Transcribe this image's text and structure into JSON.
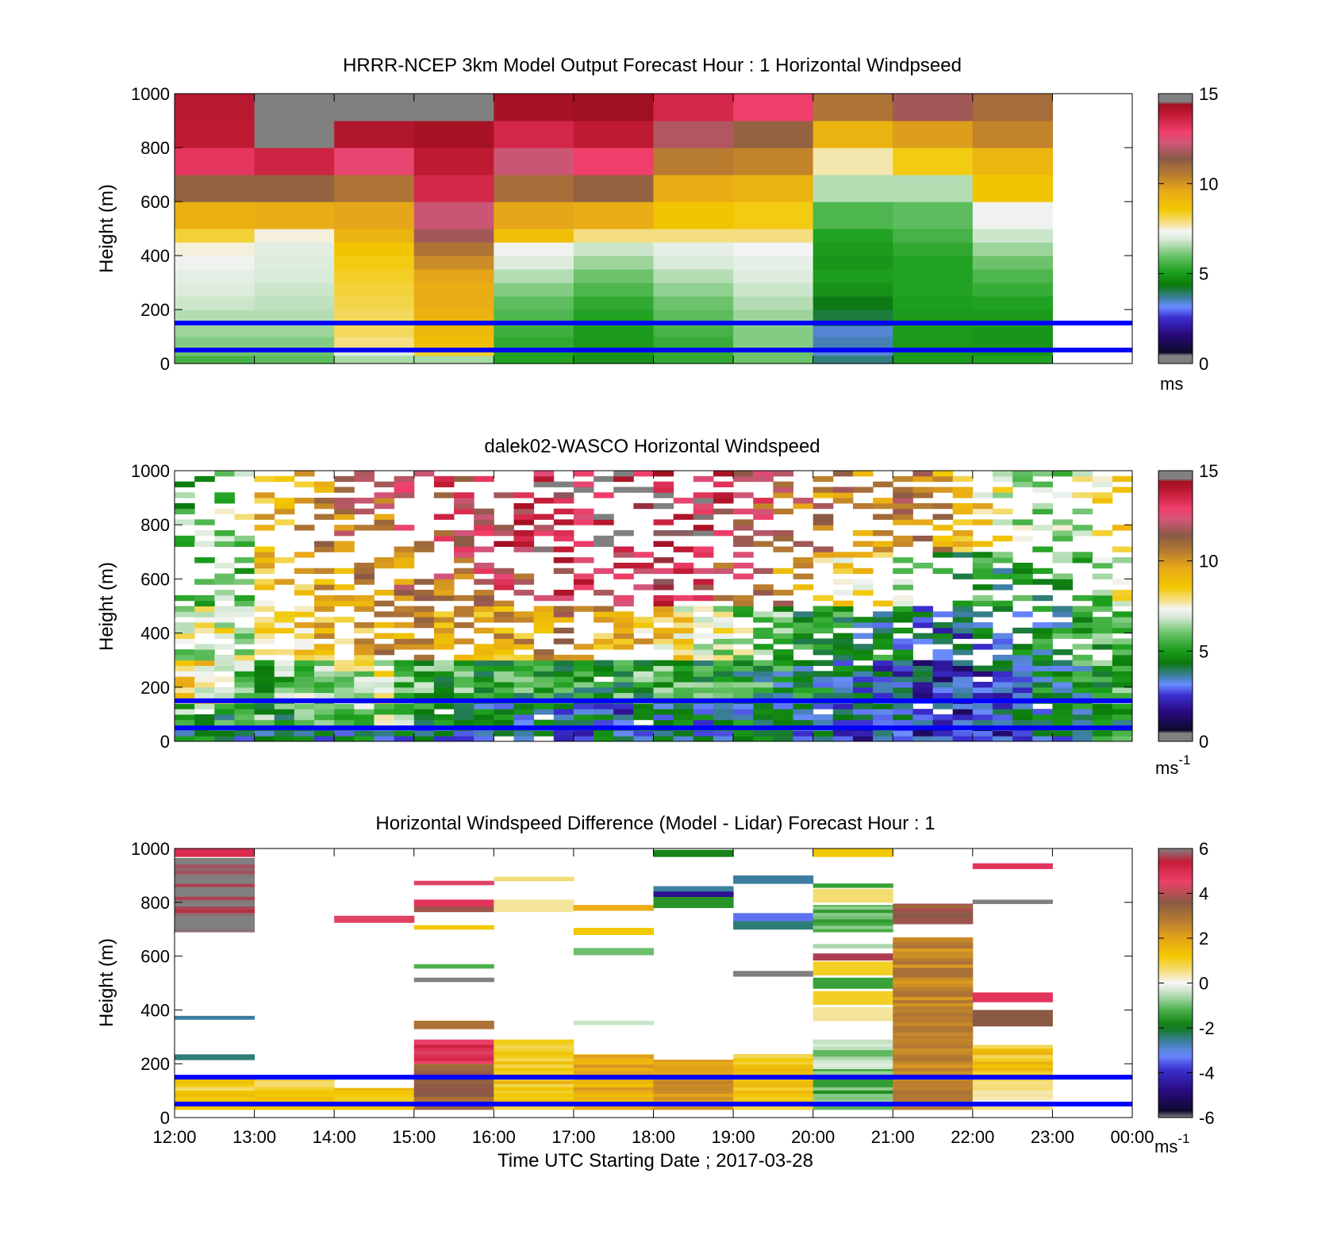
{
  "chart_data": [
    {
      "type": "heatmap",
      "title": "HRRR-NCEP 3km Model Output   Forecast Hour : 1 Horizontal Windpseed",
      "ylabel": "Height (m)",
      "ylim": [
        0,
        1000
      ],
      "yticks": [
        "0",
        "200",
        "400",
        "600",
        "800",
        "1000"
      ],
      "xlim_hours": [
        12,
        24
      ],
      "colorbar": {
        "range": [
          0,
          15
        ],
        "ticks": [
          "0",
          "5",
          "10",
          "15"
        ],
        "unit": "ms"
      },
      "reference_lines_m": [
        50,
        150
      ],
      "reference_line_color": "#0000ff",
      "x_columns_start_hour": [
        12,
        13,
        14,
        15,
        16,
        17,
        18,
        19,
        20,
        21,
        22
      ],
      "column_width_hours": 1,
      "row_edges_m": [
        0,
        30,
        60,
        100,
        140,
        200,
        250,
        300,
        350,
        400,
        450,
        500,
        600,
        700,
        800,
        900,
        1000
      ],
      "values_ms": [
        [
          5.5,
          5.8,
          6.5,
          6.5,
          5.0,
          4.6,
          5.2,
          6.0,
          3.5,
          4.8,
          5.0
        ],
        [
          6.0,
          6.0,
          7.0,
          8.5,
          5.0,
          4.7,
          5.2,
          6.0,
          3.0,
          4.8,
          4.7
        ],
        [
          6.2,
          6.2,
          8.0,
          9.0,
          5.2,
          4.8,
          5.3,
          6.2,
          3.2,
          4.8,
          4.7
        ],
        [
          6.4,
          6.4,
          8.2,
          9.2,
          5.4,
          4.8,
          5.5,
          6.2,
          3.0,
          4.8,
          4.7
        ],
        [
          6.6,
          6.6,
          8.2,
          9.4,
          5.6,
          5.0,
          5.8,
          6.4,
          3.8,
          4.8,
          4.8
        ],
        [
          6.8,
          6.7,
          8.3,
          9.6,
          5.8,
          5.2,
          6.0,
          6.6,
          4.0,
          4.9,
          5.0
        ],
        [
          7.0,
          6.8,
          8.4,
          9.6,
          6.2,
          5.6,
          6.3,
          6.8,
          4.6,
          5.0,
          5.3
        ],
        [
          7.2,
          6.9,
          8.5,
          9.8,
          6.6,
          6.0,
          6.6,
          7.0,
          4.9,
          5.0,
          5.6
        ],
        [
          7.4,
          7.0,
          8.6,
          10.4,
          7.0,
          6.4,
          6.9,
          7.2,
          4.7,
          5.0,
          6.0
        ],
        [
          7.6,
          7.1,
          8.8,
          11.0,
          7.4,
          6.8,
          7.2,
          7.5,
          4.8,
          5.2,
          6.4
        ],
        [
          8.4,
          7.6,
          9.4,
          12.0,
          9.0,
          8.0,
          8.0,
          8.0,
          5.0,
          5.5,
          6.8
        ],
        [
          9.5,
          9.6,
          9.8,
          12.5,
          9.8,
          9.6,
          8.8,
          8.6,
          5.6,
          5.8,
          7.4
        ],
        [
          11.5,
          11.5,
          11.0,
          13.8,
          11.2,
          11.5,
          9.6,
          9.4,
          6.6,
          6.6,
          8.8
        ],
        [
          13.4,
          13.9,
          13.0,
          14.2,
          12.5,
          13.2,
          10.8,
          10.6,
          7.8,
          8.6,
          9.3
        ],
        [
          14.2,
          15.0,
          14.4,
          14.6,
          13.8,
          14.2,
          12.2,
          11.5,
          9.4,
          10.0,
          10.6
        ],
        [
          14.3,
          15.0,
          15.0,
          15.0,
          14.6,
          14.7,
          13.8,
          13.2,
          11.0,
          12.0,
          11.2
        ]
      ]
    },
    {
      "type": "heatmap",
      "title": "dalek02-WASCO  Horizontal Windspeed",
      "ylabel": "Height (m)",
      "ylim": [
        0,
        1000
      ],
      "yticks": [
        "0",
        "200",
        "400",
        "600",
        "800",
        "1000"
      ],
      "xlim_hours": [
        12,
        24
      ],
      "colorbar": {
        "range": [
          0,
          15
        ],
        "ticks": [
          "0",
          "5",
          "10",
          "15"
        ],
        "unit": "ms",
        "unit_superscript": "-1"
      },
      "reference_lines_m": [
        50,
        150
      ],
      "reference_line_color": "#0000ff",
      "column_width_hours": 0.25,
      "row_height_m": 20,
      "x_columns_start_hour": [
        12.0,
        12.25,
        12.5,
        12.75,
        13.0,
        13.25,
        13.5,
        13.75,
        14.0,
        14.25,
        14.5,
        14.75,
        15.0,
        15.25,
        15.5,
        15.75,
        16.0,
        16.25,
        16.5,
        16.75,
        17.0,
        17.25,
        17.5,
        17.75,
        18.0,
        18.25,
        18.5,
        18.75,
        19.0,
        19.25,
        19.5,
        19.75,
        20.0,
        20.25,
        20.5,
        20.75,
        21.0,
        21.25,
        21.5,
        21.75,
        22.0,
        22.25,
        22.5,
        22.75,
        23.0,
        23.25,
        23.5,
        23.75
      ],
      "column_profiles_ms_by_layer": {
        "layers_m": [
          [
            0,
            60
          ],
          [
            60,
            150
          ],
          [
            150,
            300
          ],
          [
            300,
            500
          ],
          [
            500,
            700
          ],
          [
            700,
            1000
          ]
        ],
        "profiles": [
          [
            3.5,
            5.5,
            8.5,
            7.0,
            6.0,
            5.5
          ],
          [
            3.6,
            5.2,
            8.2,
            7.2,
            6.2,
            5.8
          ],
          [
            3.4,
            5.0,
            7.8,
            7.6,
            6.4,
            6.4
          ],
          [
            3.5,
            5.3,
            6.0,
            7.2,
            6.0,
            6.6
          ],
          [
            3.8,
            5.4,
            5.5,
            8.2,
            8.6,
            9.0
          ],
          [
            3.6,
            5.0,
            5.8,
            8.8,
            9.0,
            9.5
          ],
          [
            3.9,
            5.6,
            6.2,
            9.0,
            9.4,
            10.0
          ],
          [
            3.5,
            5.6,
            6.5,
            9.4,
            9.8,
            10.4
          ],
          [
            3.7,
            6.0,
            6.8,
            9.2,
            9.9,
            10.8
          ],
          [
            3.8,
            6.1,
            7.0,
            9.6,
            10.2,
            11.0
          ],
          [
            3.6,
            6.2,
            7.2,
            10.0,
            10.6,
            11.2
          ],
          [
            3.4,
            6.0,
            6.0,
            10.2,
            10.8,
            11.8
          ],
          [
            3.5,
            5.2,
            5.4,
            10.4,
            11.0,
            12.2
          ],
          [
            3.3,
            4.9,
            5.0,
            10.0,
            11.4,
            12.6
          ],
          [
            3.2,
            4.5,
            5.2,
            9.6,
            11.6,
            12.8
          ],
          [
            3.0,
            4.1,
            5.0,
            9.8,
            12.0,
            13.2
          ],
          [
            3.1,
            3.8,
            4.8,
            9.6,
            12.2,
            13.4
          ],
          [
            3.0,
            3.6,
            4.8,
            9.8,
            12.4,
            13.6
          ],
          [
            2.9,
            3.5,
            4.7,
            10.2,
            12.8,
            13.8
          ],
          [
            2.9,
            3.4,
            4.8,
            10.4,
            13.0,
            14.0
          ],
          [
            3.0,
            3.2,
            4.9,
            10.0,
            13.2,
            14.2
          ],
          [
            3.1,
            3.0,
            5.0,
            9.6,
            13.4,
            14.4
          ],
          [
            3.2,
            2.8,
            5.1,
            9.2,
            13.6,
            14.6
          ],
          [
            3.3,
            2.9,
            5.2,
            9.0,
            13.8,
            14.6
          ],
          [
            3.4,
            3.0,
            5.3,
            8.6,
            13.6,
            14.6
          ],
          [
            3.5,
            3.2,
            5.2,
            8.2,
            13.2,
            14.4
          ],
          [
            3.6,
            3.4,
            5.1,
            7.6,
            12.8,
            14.0
          ],
          [
            3.7,
            3.6,
            5.0,
            7.0,
            12.2,
            13.4
          ],
          [
            3.6,
            3.8,
            4.9,
            6.4,
            11.6,
            12.6
          ],
          [
            3.5,
            3.9,
            4.8,
            6.0,
            11.0,
            12.0
          ],
          [
            3.3,
            3.8,
            4.4,
            5.4,
            10.4,
            11.4
          ],
          [
            3.1,
            3.6,
            4.0,
            5.0,
            9.8,
            11.0
          ],
          [
            2.9,
            3.4,
            3.7,
            4.6,
            9.2,
            10.6
          ],
          [
            2.6,
            3.2,
            3.4,
            4.4,
            8.6,
            10.4
          ],
          [
            2.4,
            3.0,
            3.1,
            4.2,
            8.0,
            10.4
          ],
          [
            2.2,
            2.8,
            2.9,
            4.0,
            7.4,
            10.6
          ],
          [
            2.0,
            2.5,
            2.6,
            3.7,
            6.8,
            11.0
          ],
          [
            1.8,
            2.2,
            2.3,
            3.4,
            6.0,
            10.8
          ],
          [
            1.6,
            2.0,
            2.1,
            3.0,
            5.4,
            10.2
          ],
          [
            1.5,
            1.9,
            2.0,
            2.8,
            5.0,
            9.4
          ],
          [
            1.6,
            2.0,
            2.4,
            3.2,
            5.0,
            8.4
          ],
          [
            2.0,
            2.4,
            2.8,
            3.6,
            4.8,
            7.4
          ],
          [
            2.4,
            2.8,
            3.2,
            3.8,
            4.8,
            6.6
          ],
          [
            2.8,
            3.2,
            3.8,
            4.2,
            4.8,
            6.2
          ],
          [
            3.2,
            3.6,
            4.2,
            4.6,
            5.2,
            6.4
          ],
          [
            3.6,
            4.0,
            4.6,
            5.0,
            5.8,
            7.2
          ],
          [
            4.0,
            4.4,
            5.0,
            5.4,
            6.4,
            8.6
          ],
          [
            4.4,
            4.8,
            5.4,
            5.8,
            7.0,
            9.6
          ]
        ]
      }
    },
    {
      "type": "heatmap",
      "title": "Horizontal Windspeed Difference (Model - Lidar) Forecast Hour : 1",
      "xlabel": "Time UTC  Starting Date ; 2017-03-28",
      "ylabel": "Height (m)",
      "ylim": [
        0,
        1000
      ],
      "yticks": [
        "0",
        "200",
        "400",
        "600",
        "800",
        "1000"
      ],
      "xlim_hours": [
        12,
        24
      ],
      "xticks": [
        "12:00",
        "13:00",
        "14:00",
        "15:00",
        "16:00",
        "17:00",
        "18:00",
        "19:00",
        "20:00",
        "21:00",
        "22:00",
        "23:00",
        "00:00"
      ],
      "colorbar": {
        "range": [
          -6,
          6
        ],
        "ticks": [
          "-6",
          "-4",
          "-2",
          "0",
          "2",
          "4",
          "6"
        ],
        "unit": "ms",
        "unit_superscript": "-1"
      },
      "reference_lines_m": [
        50,
        150
      ],
      "reference_line_color": "#0000ff",
      "bars": [
        {
          "col": 12,
          "y0": 970,
          "y1": 1000,
          "v": 5.0
        },
        {
          "col": 12,
          "y0": 690,
          "y1": 965,
          "v": 6.0
        },
        {
          "col": 12,
          "y0": 365,
          "y1": 378,
          "v": -2.6
        },
        {
          "col": 12,
          "y0": 215,
          "y1": 235,
          "v": -2.4
        },
        {
          "col": 12,
          "y0": 30,
          "y1": 150,
          "v": 1.0
        },
        {
          "col": 13,
          "y0": 30,
          "y1": 140,
          "v": 1.0
        },
        {
          "col": 14,
          "y0": 725,
          "y1": 750,
          "v": 4.4
        },
        {
          "col": 14,
          "y0": 30,
          "y1": 110,
          "v": 1.2
        },
        {
          "col": 15,
          "y0": 865,
          "y1": 880,
          "v": 4.4
        },
        {
          "col": 15,
          "y0": 785,
          "y1": 810,
          "v": 4.8
        },
        {
          "col": 15,
          "y0": 765,
          "y1": 785,
          "v": 3.8
        },
        {
          "col": 15,
          "y0": 700,
          "y1": 715,
          "v": 1.2
        },
        {
          "col": 15,
          "y0": 555,
          "y1": 570,
          "v": -1.2
        },
        {
          "col": 15,
          "y0": 505,
          "y1": 520,
          "v": 6.0
        },
        {
          "col": 15,
          "y0": 330,
          "y1": 360,
          "v": 3.0
        },
        {
          "col": 15,
          "y0": 200,
          "y1": 290,
          "v": 4.8
        },
        {
          "col": 15,
          "y0": 30,
          "y1": 200,
          "v": 3.4
        },
        {
          "col": 16,
          "y0": 880,
          "y1": 895,
          "v": 0.6
        },
        {
          "col": 16,
          "y0": 765,
          "y1": 810,
          "v": 0.4
        },
        {
          "col": 16,
          "y0": 30,
          "y1": 290,
          "v": 1.2
        },
        {
          "col": 17,
          "y0": 770,
          "y1": 790,
          "v": 1.8
        },
        {
          "col": 17,
          "y0": 680,
          "y1": 705,
          "v": 1.2
        },
        {
          "col": 17,
          "y0": 605,
          "y1": 630,
          "v": -1.0
        },
        {
          "col": 17,
          "y0": 345,
          "y1": 360,
          "v": -0.4
        },
        {
          "col": 17,
          "y0": 30,
          "y1": 235,
          "v": 1.8
        },
        {
          "col": 18,
          "y0": 970,
          "y1": 995,
          "v": -1.8
        },
        {
          "col": 18,
          "y0": 840,
          "y1": 860,
          "v": -2.6
        },
        {
          "col": 18,
          "y0": 820,
          "y1": 840,
          "v": -4.6
        },
        {
          "col": 18,
          "y0": 780,
          "y1": 820,
          "v": -1.6
        },
        {
          "col": 18,
          "y0": 30,
          "y1": 215,
          "v": 2.2
        },
        {
          "col": 19,
          "y0": 870,
          "y1": 900,
          "v": -2.6
        },
        {
          "col": 19,
          "y0": 730,
          "y1": 760,
          "v": -3.4
        },
        {
          "col": 19,
          "y0": 700,
          "y1": 730,
          "v": -2.4
        },
        {
          "col": 19,
          "y0": 525,
          "y1": 545,
          "v": 6.0
        },
        {
          "col": 19,
          "y0": 30,
          "y1": 235,
          "v": 1.2
        },
        {
          "col": 20,
          "y0": 970,
          "y1": 1000,
          "v": 1.2
        },
        {
          "col": 20,
          "y0": 855,
          "y1": 870,
          "v": -1.4
        },
        {
          "col": 20,
          "y0": 800,
          "y1": 850,
          "v": 0.6
        },
        {
          "col": 20,
          "y0": 690,
          "y1": 790,
          "v": -1.2
        },
        {
          "col": 20,
          "y0": 630,
          "y1": 645,
          "v": -0.6
        },
        {
          "col": 20,
          "y0": 585,
          "y1": 610,
          "v": 5.6
        },
        {
          "col": 20,
          "y0": 530,
          "y1": 580,
          "v": 1.0
        },
        {
          "col": 20,
          "y0": 480,
          "y1": 520,
          "v": -1.4
        },
        {
          "col": 20,
          "y0": 420,
          "y1": 470,
          "v": 1.0
        },
        {
          "col": 20,
          "y0": 360,
          "y1": 410,
          "v": 0.4
        },
        {
          "col": 20,
          "y0": 180,
          "y1": 290,
          "v": -0.6
        },
        {
          "col": 20,
          "y0": 30,
          "y1": 180,
          "v": -1.2
        },
        {
          "col": 21,
          "y0": 720,
          "y1": 795,
          "v": 3.6
        },
        {
          "col": 21,
          "y0": 30,
          "y1": 670,
          "v": 2.6
        },
        {
          "col": 22,
          "y0": 925,
          "y1": 945,
          "v": 4.8
        },
        {
          "col": 22,
          "y0": 795,
          "y1": 810,
          "v": 6.0
        },
        {
          "col": 22,
          "y0": 430,
          "y1": 465,
          "v": 4.8
        },
        {
          "col": 22,
          "y0": 340,
          "y1": 400,
          "v": 3.6
        },
        {
          "col": 22,
          "y0": 150,
          "y1": 270,
          "v": 1.2
        },
        {
          "col": 22,
          "y0": 30,
          "y1": 150,
          "v": 0.4
        }
      ]
    }
  ]
}
